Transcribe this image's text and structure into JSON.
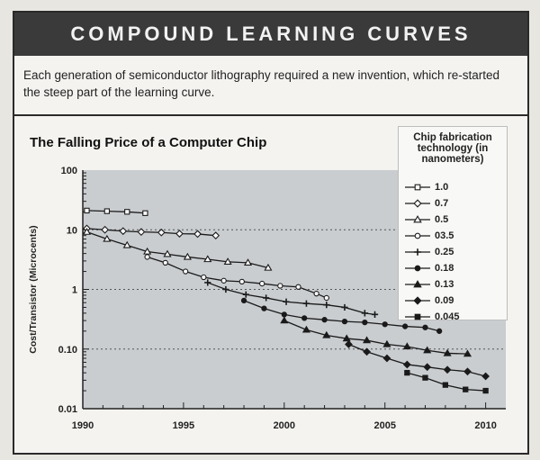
{
  "banner": {
    "title": "COMPOUND LEARNING CURVES"
  },
  "intro": {
    "text": "Each generation of semiconductor lithography required a new invention, which re-started the steep part of the learning curve."
  },
  "chart_data": {
    "type": "line",
    "title": "The Falling Price of a Computer Chip",
    "ylabel": "Cost/Transistor (Microcents)",
    "xlabel": "",
    "xlim": [
      1990,
      2011
    ],
    "ylim": [
      0.01,
      100
    ],
    "yscale": "log",
    "xticks": [
      "1990",
      "1995",
      "2000",
      "2005",
      "2010"
    ],
    "yticks": [
      {
        "value": 100,
        "label": "100"
      },
      {
        "value": 10,
        "label": "10"
      },
      {
        "value": 1,
        "label": "1"
      },
      {
        "value": 0.1,
        "label": "0.10"
      },
      {
        "value": 0.01,
        "label": "0.01"
      }
    ],
    "grid": true,
    "legend": {
      "title": "Chip fabrication technology (in nanometers)",
      "placement": "top-right"
    },
    "series": [
      {
        "name": "1.0",
        "marker": "square-open",
        "x": [
          1990.2,
          1991.2,
          1992.2,
          1993.1
        ],
        "y": [
          21,
          20.5,
          20,
          19
        ]
      },
      {
        "name": "0.7",
        "marker": "diamond-open",
        "x": [
          1990.2,
          1991.1,
          1992.0,
          1992.9,
          1993.9,
          1994.8,
          1995.7,
          1996.6
        ],
        "y": [
          10.5,
          10,
          9.5,
          9.2,
          9.0,
          8.6,
          8.5,
          8.0
        ]
      },
      {
        "name": "0.5",
        "marker": "triangle-open",
        "x": [
          1990.2,
          1991.2,
          1992.2,
          1993.2,
          1994.2,
          1995.2,
          1996.2,
          1997.2,
          1998.2,
          1999.2
        ],
        "y": [
          9.2,
          7.0,
          5.5,
          4.3,
          3.9,
          3.5,
          3.2,
          2.9,
          2.8,
          2.3
        ]
      },
      {
        "name": "03.5",
        "marker": "circle-open",
        "x": [
          1993.2,
          1994.1,
          1995.1,
          1996.0,
          1997.0,
          1997.9,
          1998.9,
          1999.8,
          2000.7,
          2001.6,
          2002.1
        ],
        "y": [
          3.5,
          2.8,
          2.0,
          1.6,
          1.4,
          1.35,
          1.25,
          1.15,
          1.1,
          0.85,
          0.72
        ]
      },
      {
        "name": "0.25",
        "marker": "plus",
        "x": [
          1996.2,
          1997.1,
          1998.1,
          1999.1,
          2000.1,
          2001.1,
          2002.1,
          2003.0,
          2004.0,
          2004.5
        ],
        "y": [
          1.3,
          1.0,
          0.82,
          0.72,
          0.62,
          0.58,
          0.55,
          0.5,
          0.4,
          0.38
        ]
      },
      {
        "name": "0.18",
        "marker": "circle-filled",
        "x": [
          1998.0,
          1999.0,
          2000.0,
          2001.0,
          2002.0,
          2003.0,
          2004.0,
          2005.0,
          2006.0,
          2007.0,
          2007.7
        ],
        "y": [
          0.65,
          0.48,
          0.38,
          0.33,
          0.31,
          0.29,
          0.28,
          0.26,
          0.24,
          0.23,
          0.2
        ]
      },
      {
        "name": "0.13",
        "marker": "triangle-filled",
        "x": [
          2000.0,
          2001.1,
          2002.1,
          2003.1,
          2004.1,
          2005.1,
          2006.1,
          2007.1,
          2008.1,
          2009.1
        ],
        "y": [
          0.3,
          0.21,
          0.17,
          0.15,
          0.14,
          0.12,
          0.11,
          0.095,
          0.085,
          0.083
        ]
      },
      {
        "name": "0.09",
        "marker": "diamond-filled",
        "x": [
          2003.2,
          2004.1,
          2005.1,
          2006.1,
          2007.1,
          2008.1,
          2009.1,
          2010.0
        ],
        "y": [
          0.12,
          0.09,
          0.07,
          0.055,
          0.05,
          0.045,
          0.042,
          0.035
        ]
      },
      {
        "name": "0.045",
        "marker": "square-filled",
        "x": [
          2006.1,
          2007.0,
          2008.0,
          2009.0,
          2010.0
        ],
        "y": [
          0.04,
          0.033,
          0.025,
          0.021,
          0.02
        ]
      }
    ]
  }
}
